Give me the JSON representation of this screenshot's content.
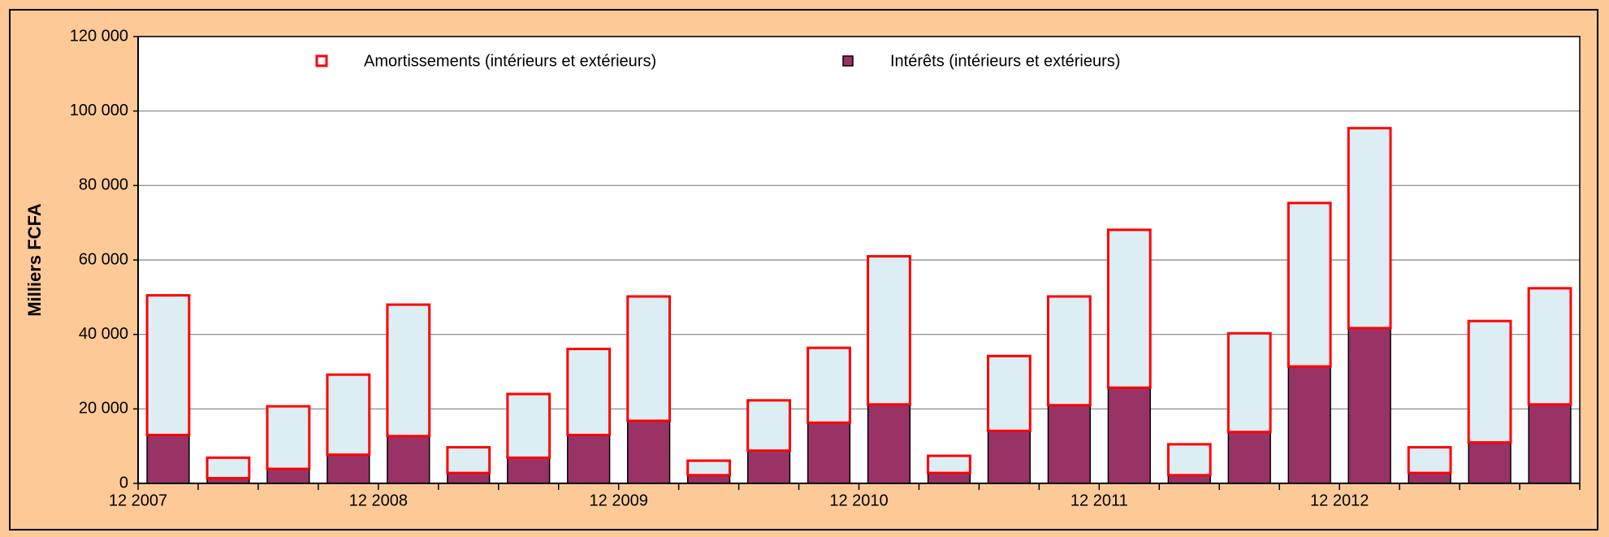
{
  "chart_data": {
    "type": "stacked-bar",
    "y_label": "Milliers FCFA",
    "categories": [
      "12 2007",
      null,
      null,
      null,
      "12 2008",
      null,
      null,
      null,
      "12 2009",
      null,
      null,
      null,
      "12 2010",
      null,
      null,
      null,
      "12 2011",
      null,
      null,
      null,
      "12 2012",
      null,
      null,
      null
    ],
    "series": [
      {
        "name": "Amortissements (intérieurs et extérieurs)",
        "color": "#DCEEF3",
        "edge_color": "#FF0000",
        "values": [
          37500,
          5500,
          16800,
          21500,
          35300,
          6900,
          17100,
          23100,
          33400,
          3900,
          13500,
          20100,
          39800,
          4600,
          20100,
          29200,
          42400,
          8300,
          26500,
          43900,
          53700,
          6900,
          32600,
          31200
        ]
      },
      {
        "name": "Intérêts (intérieurs et extérieurs)",
        "color": "#993366",
        "edge_color": "#000000",
        "values": [
          13000,
          1400,
          3900,
          7700,
          12700,
          2800,
          6900,
          13000,
          16800,
          2200,
          8800,
          16300,
          21200,
          2800,
          14100,
          21000,
          25700,
          2200,
          13800,
          31400,
          41700,
          2800,
          11000,
          21200
        ]
      }
    ],
    "ylim": [
      0,
      120000
    ],
    "yticks": [
      {
        "value": 0,
        "label": "0"
      },
      {
        "value": 20000,
        "label": "20 000"
      },
      {
        "value": 40000,
        "label": "40 000"
      },
      {
        "value": 60000,
        "label": "60 000"
      },
      {
        "value": 80000,
        "label": "80 000"
      },
      {
        "value": 100000,
        "label": "100 000"
      },
      {
        "value": 120000,
        "label": "120 000"
      }
    ],
    "grid": true,
    "legend": "top"
  }
}
